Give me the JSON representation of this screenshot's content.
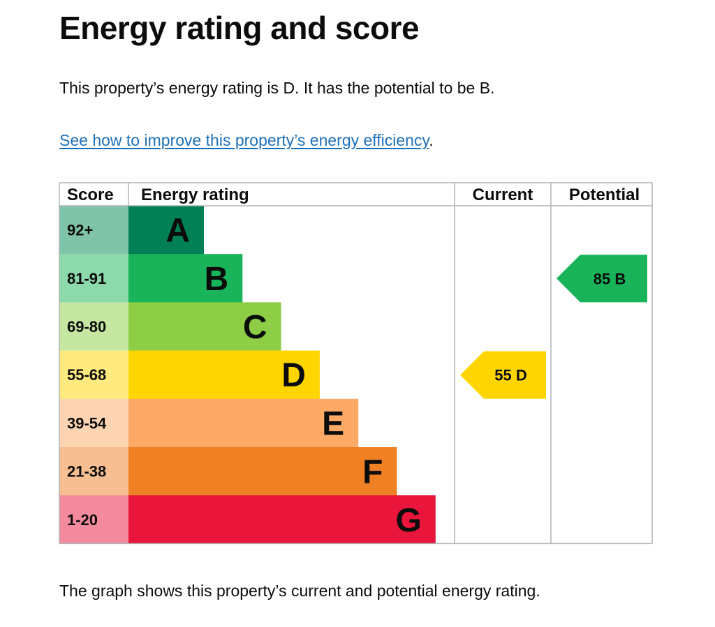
{
  "page": {
    "title": "Energy rating and score",
    "summary": "This property’s energy rating is D. It has the potential to be B.",
    "improve_link": "See how to improve this property’s energy efficiency",
    "improve_link_suffix": ".",
    "caption": "The graph shows this property’s current and potential energy rating."
  },
  "chart_data": {
    "type": "bar",
    "columns": [
      "Score",
      "Energy rating",
      "Current",
      "Potential"
    ],
    "bands": [
      {
        "letter": "A",
        "score_range": "92+",
        "min": 92,
        "color": "#008054",
        "score_color": "#7fc4a9"
      },
      {
        "letter": "B",
        "score_range": "81-91",
        "min": 81,
        "color": "#19b459",
        "score_color": "#8cd9ac"
      },
      {
        "letter": "C",
        "score_range": "69-80",
        "min": 69,
        "color": "#8dce46",
        "score_color": "#c6e7a2"
      },
      {
        "letter": "D",
        "score_range": "55-68",
        "min": 55,
        "color": "#ffd500",
        "score_color": "#ffea7f"
      },
      {
        "letter": "E",
        "score_range": "39-54",
        "min": 39,
        "color": "#fcaa65",
        "score_color": "#fdd4b2"
      },
      {
        "letter": "F",
        "score_range": "21-38",
        "min": 21,
        "color": "#ef8023",
        "score_color": "#f7bf91"
      },
      {
        "letter": "G",
        "score_range": "1-20",
        "min": 1,
        "color": "#e9153b",
        "score_color": "#f48a9d"
      }
    ],
    "current": {
      "score": 55,
      "letter": "D",
      "label": "55 D"
    },
    "potential": {
      "score": 85,
      "letter": "B",
      "label": "85 B"
    }
  }
}
